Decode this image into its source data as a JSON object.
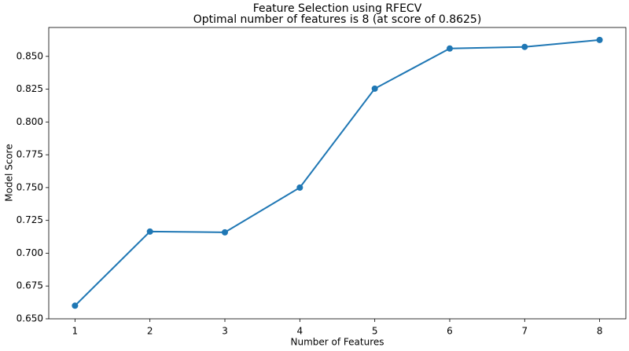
{
  "chart_data": {
    "type": "line",
    "title": "Feature Selection using RFECV",
    "subtitle": "Optimal number of features is 8 (at score of 0.8625)",
    "x_label": "Number of Features",
    "y_label": "Model Score",
    "x": [
      1,
      2,
      3,
      4,
      5,
      6,
      7,
      8
    ],
    "series": [
      {
        "name": "Model Score",
        "color": "#1f77b4",
        "values": [
          0.66,
          0.7165,
          0.7159,
          0.75,
          0.8254,
          0.856,
          0.8572,
          0.8625
        ]
      }
    ],
    "xlim": [
      0.65,
      8.35
    ],
    "xticks": [
      1,
      2,
      3,
      4,
      5,
      6,
      7,
      8
    ],
    "ylim": [
      0.65,
      0.872
    ],
    "yticks": [
      {
        "value": 0.65,
        "label": "0.650"
      },
      {
        "value": 0.675,
        "label": "0.675"
      },
      {
        "value": 0.7,
        "label": "0.700"
      },
      {
        "value": 0.725,
        "label": "0.725"
      },
      {
        "value": 0.75,
        "label": "0.750"
      },
      {
        "value": 0.775,
        "label": "0.775"
      },
      {
        "value": 0.8,
        "label": "0.800"
      },
      {
        "value": 0.825,
        "label": "0.825"
      },
      {
        "value": 0.85,
        "label": "0.850"
      }
    ],
    "grid": false
  }
}
